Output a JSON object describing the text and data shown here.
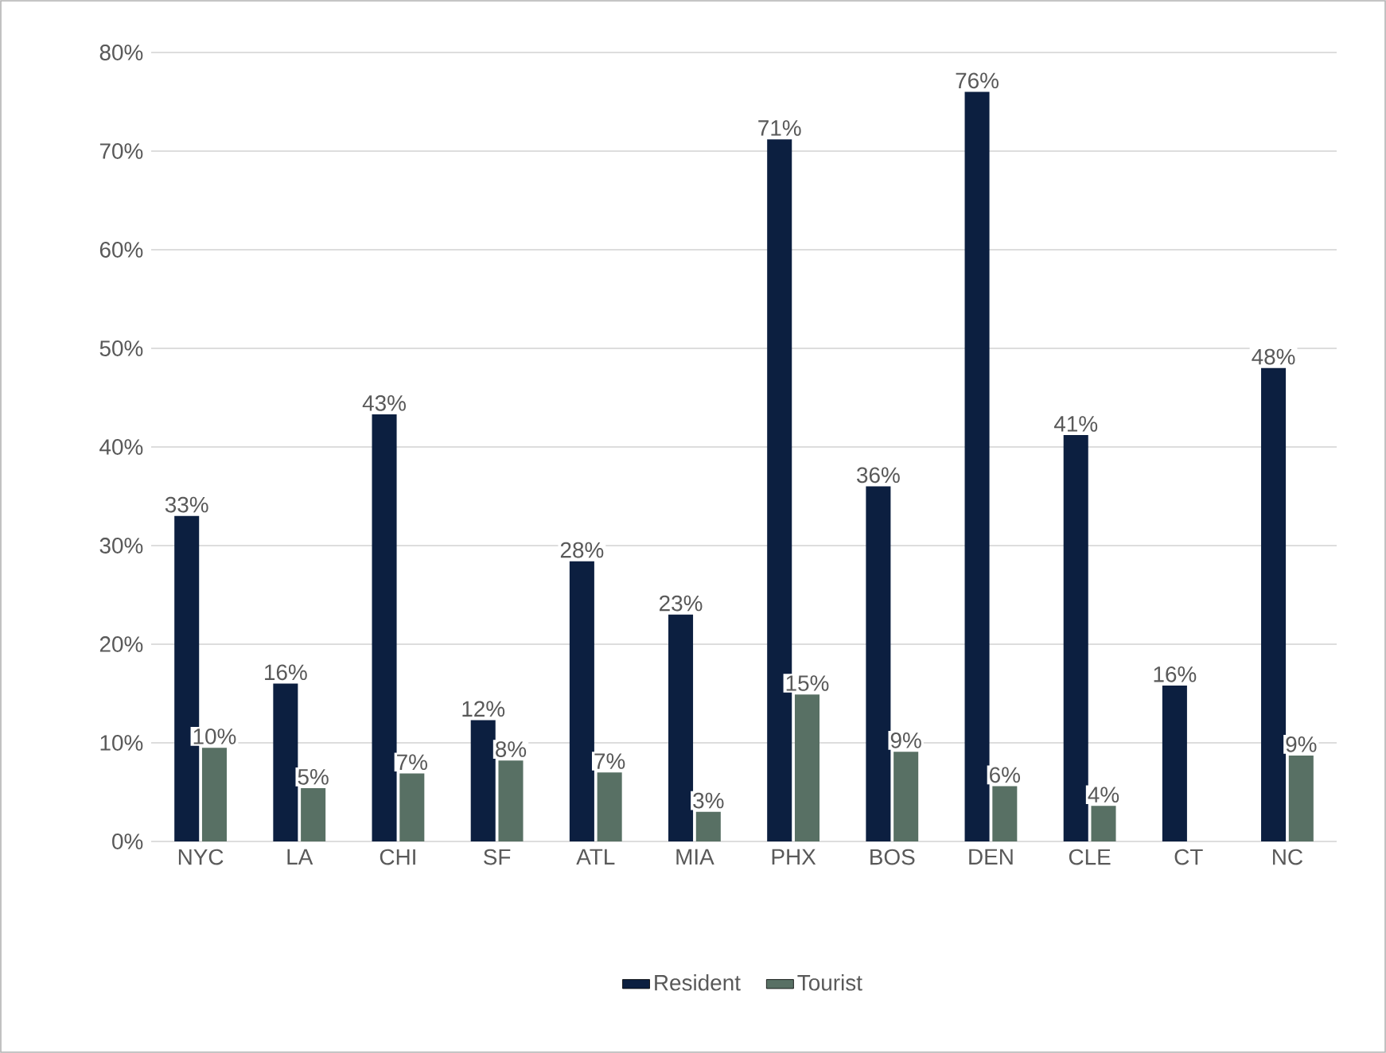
{
  "chart_data": {
    "type": "bar",
    "categories": [
      "NYC",
      "LA",
      "CHI",
      "SF",
      "ATL",
      "MIA",
      "PHX",
      "BOS",
      "DEN",
      "CLE",
      "CT",
      "NC"
    ],
    "series": [
      {
        "name": "Resident",
        "color": "#0c1f40",
        "values": [
          33,
          16,
          43.3,
          12.3,
          28.4,
          23,
          71.2,
          36,
          76,
          41.2,
          15.8,
          48
        ],
        "value_labels": [
          "33%",
          "16%",
          "43%",
          "12%",
          "28%",
          "23%",
          "71%",
          "36%",
          "76%",
          "41%",
          "16%",
          "48%"
        ]
      },
      {
        "name": "Tourist",
        "color": "#587064",
        "values": [
          9.5,
          5.4,
          6.9,
          8.2,
          7,
          3,
          14.9,
          9.1,
          5.6,
          3.6,
          null,
          8.7
        ],
        "value_labels": [
          "10%",
          "5%",
          "7%",
          "8%",
          "7%",
          "3%",
          "15%",
          "9%",
          "6%",
          "4%",
          null,
          "9%"
        ]
      }
    ],
    "ylim": [
      0,
      80
    ],
    "yticks": [
      {
        "value": 0,
        "label": "0%"
      },
      {
        "value": 10,
        "label": "10%"
      },
      {
        "value": 20,
        "label": "20%"
      },
      {
        "value": 30,
        "label": "30%"
      },
      {
        "value": 40,
        "label": "40%"
      },
      {
        "value": 50,
        "label": "50%"
      },
      {
        "value": 60,
        "label": "60%"
      },
      {
        "value": 70,
        "label": "70%"
      },
      {
        "value": 80,
        "label": "80%"
      }
    ],
    "grid": "y",
    "legend": "bottom"
  }
}
